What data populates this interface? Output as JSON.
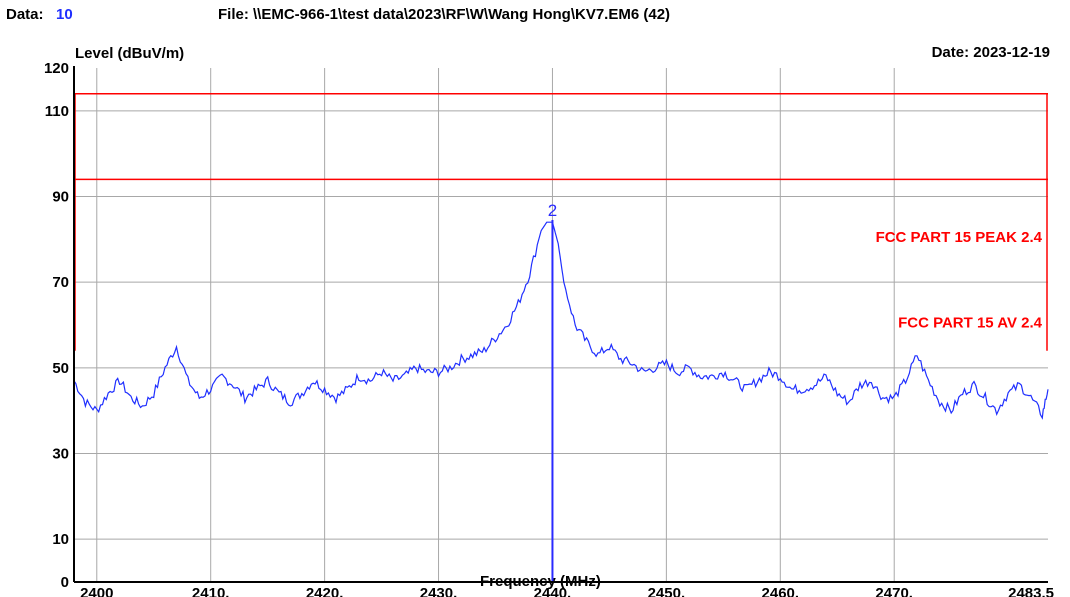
{
  "header": {
    "data_label": "Data:",
    "data_value": "10",
    "file": "File: \\\\EMC-966-1\\test data\\2023\\RF\\W\\Wang Hong\\KV7.EM6  (42)",
    "date": "Date: 2023-12-19"
  },
  "chart_data": {
    "type": "line",
    "xlabel": "Frequency (MHz)",
    "ylabel": "Level (dBuV/m)",
    "xlim": [
      2398,
      2483.5
    ],
    "ylim": [
      0,
      120
    ],
    "grid": true,
    "x_ticks": [
      {
        "value": 2400,
        "label": "2400"
      },
      {
        "value": 2410,
        "label": "2410."
      },
      {
        "value": 2420,
        "label": "2420."
      },
      {
        "value": 2430,
        "label": "2430."
      },
      {
        "value": 2440,
        "label": "2440."
      },
      {
        "value": 2450,
        "label": "2450."
      },
      {
        "value": 2460,
        "label": "2460."
      },
      {
        "value": 2470,
        "label": "2470."
      },
      {
        "value": 2483.5,
        "label": "2483.5"
      }
    ],
    "y_ticks": [
      {
        "value": 0,
        "label": "0"
      },
      {
        "value": 10,
        "label": "10"
      },
      {
        "value": 30,
        "label": "30"
      },
      {
        "value": 50,
        "label": "50"
      },
      {
        "value": 70,
        "label": "70"
      },
      {
        "value": 90,
        "label": "90"
      },
      {
        "value": 110,
        "label": "110"
      },
      {
        "value": 120,
        "label": "120"
      }
    ],
    "limits": [
      {
        "name": "FCC PART 15 PEAK 2.4",
        "x": [
          2398,
          2483.5
        ],
        "y": 114,
        "color": "#ff0000"
      },
      {
        "name": "FCC PART 15 AV 2.4",
        "x": [
          2398,
          2483.5
        ],
        "y": 94,
        "color": "#ff0000"
      }
    ],
    "series": [
      {
        "color": "#1f2fff",
        "x": [
          2398,
          2399,
          2400,
          2401,
          2402,
          2403,
          2404,
          2405,
          2406,
          2407,
          2408,
          2409,
          2410,
          2411,
          2412,
          2413,
          2414,
          2415,
          2416,
          2417,
          2418,
          2419,
          2420,
          2421,
          2422,
          2423,
          2424,
          2425,
          2426,
          2427,
          2428,
          2429,
          2430,
          2431,
          2432,
          2433,
          2434,
          2435,
          2436,
          2437,
          2438,
          2439,
          2439.5,
          2440,
          2440.5,
          2441,
          2442,
          2443,
          2444,
          2445,
          2446,
          2447,
          2448,
          2449,
          2450,
          2451,
          2452,
          2453,
          2454,
          2455,
          2456,
          2457,
          2458,
          2459,
          2460,
          2461,
          2462,
          2463,
          2464,
          2465,
          2466,
          2467,
          2468,
          2469,
          2470,
          2471,
          2472,
          2473,
          2474,
          2475,
          2476,
          2477,
          2478,
          2479,
          2480,
          2481,
          2482,
          2483,
          2483.5
        ],
        "y": [
          47,
          42,
          40,
          44,
          47,
          43,
          41,
          44,
          50,
          55,
          47,
          43,
          45,
          48,
          46,
          43,
          45,
          47,
          44,
          42,
          44,
          47,
          45,
          43,
          45,
          48,
          47,
          49,
          47,
          48,
          50,
          49,
          49,
          50,
          52,
          53,
          54,
          57,
          60,
          65,
          72,
          82,
          84,
          84,
          79,
          70,
          60,
          56,
          53,
          55,
          52,
          51,
          49,
          50,
          51,
          49,
          50,
          48,
          48,
          49,
          47,
          45,
          47,
          49,
          48,
          45,
          45,
          46,
          48,
          44,
          42,
          46,
          47,
          43,
          43,
          47,
          53,
          47,
          42,
          40,
          44,
          46,
          43,
          40,
          44,
          46,
          43,
          39,
          45
        ]
      }
    ],
    "marker": {
      "label": "2",
      "x": 2440,
      "y": 84.5
    }
  }
}
